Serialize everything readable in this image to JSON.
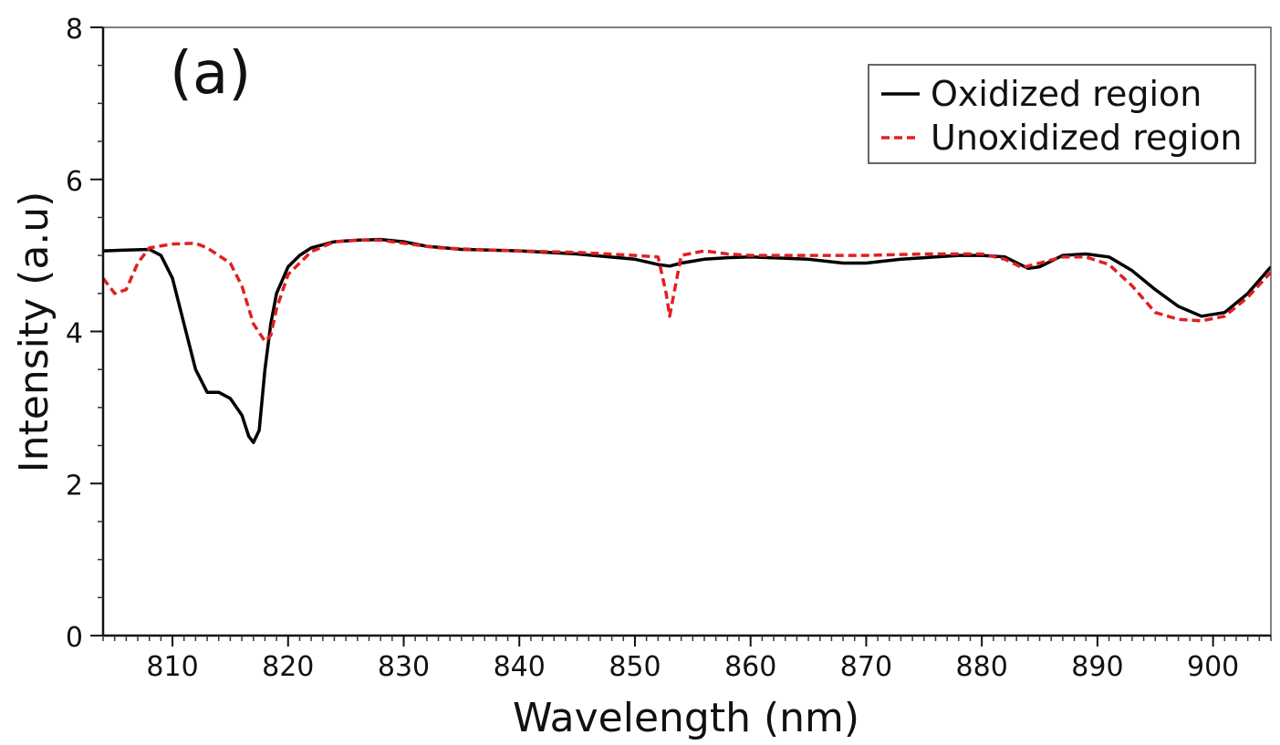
{
  "chart_data": {
    "type": "line",
    "panel_label": "(a)",
    "xlabel": "Wavelength (nm)",
    "ylabel": "Intensity (a.u)",
    "xlim": [
      804,
      905
    ],
    "ylim": [
      0,
      8
    ],
    "x_ticks": [
      810,
      820,
      830,
      840,
      850,
      860,
      870,
      880,
      890,
      900
    ],
    "x_minor_step": 1,
    "y_ticks": [
      0,
      2,
      4,
      6,
      8
    ],
    "y_minor_step": 0.5,
    "grid": false,
    "legend_position": "top-right",
    "series": [
      {
        "name": "Oxidized region",
        "color": "#000000",
        "style": "solid",
        "points": [
          [
            804,
            5.06
          ],
          [
            806,
            5.07
          ],
          [
            808,
            5.08
          ],
          [
            809,
            5.0
          ],
          [
            810,
            4.7
          ],
          [
            811,
            4.1
          ],
          [
            812,
            3.5
          ],
          [
            813,
            3.2
          ],
          [
            814,
            3.2
          ],
          [
            815,
            3.12
          ],
          [
            816,
            2.9
          ],
          [
            816.6,
            2.62
          ],
          [
            817,
            2.54
          ],
          [
            817.5,
            2.7
          ],
          [
            818,
            3.5
          ],
          [
            818.5,
            4.1
          ],
          [
            819,
            4.5
          ],
          [
            820,
            4.85
          ],
          [
            821,
            5.0
          ],
          [
            822,
            5.1
          ],
          [
            824,
            5.18
          ],
          [
            826,
            5.2
          ],
          [
            828,
            5.21
          ],
          [
            830,
            5.18
          ],
          [
            832,
            5.12
          ],
          [
            835,
            5.08
          ],
          [
            840,
            5.06
          ],
          [
            845,
            5.02
          ],
          [
            850,
            4.95
          ],
          [
            852,
            4.88
          ],
          [
            853,
            4.86
          ],
          [
            854,
            4.9
          ],
          [
            856,
            4.95
          ],
          [
            858,
            4.97
          ],
          [
            860,
            4.98
          ],
          [
            865,
            4.95
          ],
          [
            868,
            4.9
          ],
          [
            870,
            4.9
          ],
          [
            873,
            4.95
          ],
          [
            878,
            5.0
          ],
          [
            880,
            5.0
          ],
          [
            882,
            4.98
          ],
          [
            884,
            4.83
          ],
          [
            885,
            4.85
          ],
          [
            887,
            5.0
          ],
          [
            889,
            5.02
          ],
          [
            891,
            4.98
          ],
          [
            893,
            4.8
          ],
          [
            895,
            4.55
          ],
          [
            897,
            4.33
          ],
          [
            899,
            4.2
          ],
          [
            901,
            4.25
          ],
          [
            903,
            4.5
          ],
          [
            905,
            4.85
          ]
        ]
      },
      {
        "name": "Unoxidized region",
        "color": "#e02020",
        "style": "dashed",
        "points": [
          [
            804,
            4.7
          ],
          [
            805,
            4.5
          ],
          [
            806,
            4.55
          ],
          [
            807,
            4.9
          ],
          [
            808,
            5.1
          ],
          [
            810,
            5.15
          ],
          [
            812,
            5.16
          ],
          [
            813,
            5.1
          ],
          [
            815,
            4.9
          ],
          [
            816,
            4.6
          ],
          [
            817,
            4.1
          ],
          [
            818,
            3.87
          ],
          [
            818.5,
            3.95
          ],
          [
            819,
            4.3
          ],
          [
            820,
            4.75
          ],
          [
            822,
            5.05
          ],
          [
            824,
            5.18
          ],
          [
            826,
            5.2
          ],
          [
            828,
            5.2
          ],
          [
            830,
            5.16
          ],
          [
            833,
            5.1
          ],
          [
            836,
            5.08
          ],
          [
            840,
            5.06
          ],
          [
            845,
            5.04
          ],
          [
            850,
            5.0
          ],
          [
            852,
            4.98
          ],
          [
            852.7,
            4.5
          ],
          [
            853,
            4.2
          ],
          [
            853.5,
            4.6
          ],
          [
            854,
            5.0
          ],
          [
            856,
            5.06
          ],
          [
            858,
            5.02
          ],
          [
            860,
            5.0
          ],
          [
            865,
            5.0
          ],
          [
            870,
            5.0
          ],
          [
            875,
            5.02
          ],
          [
            880,
            5.02
          ],
          [
            882,
            4.95
          ],
          [
            883.5,
            4.84
          ],
          [
            885,
            4.9
          ],
          [
            887,
            4.98
          ],
          [
            889,
            4.98
          ],
          [
            891,
            4.88
          ],
          [
            893,
            4.6
          ],
          [
            895,
            4.25
          ],
          [
            897,
            4.16
          ],
          [
            899,
            4.14
          ],
          [
            901,
            4.2
          ],
          [
            903,
            4.45
          ],
          [
            905,
            4.78
          ]
        ]
      }
    ]
  }
}
